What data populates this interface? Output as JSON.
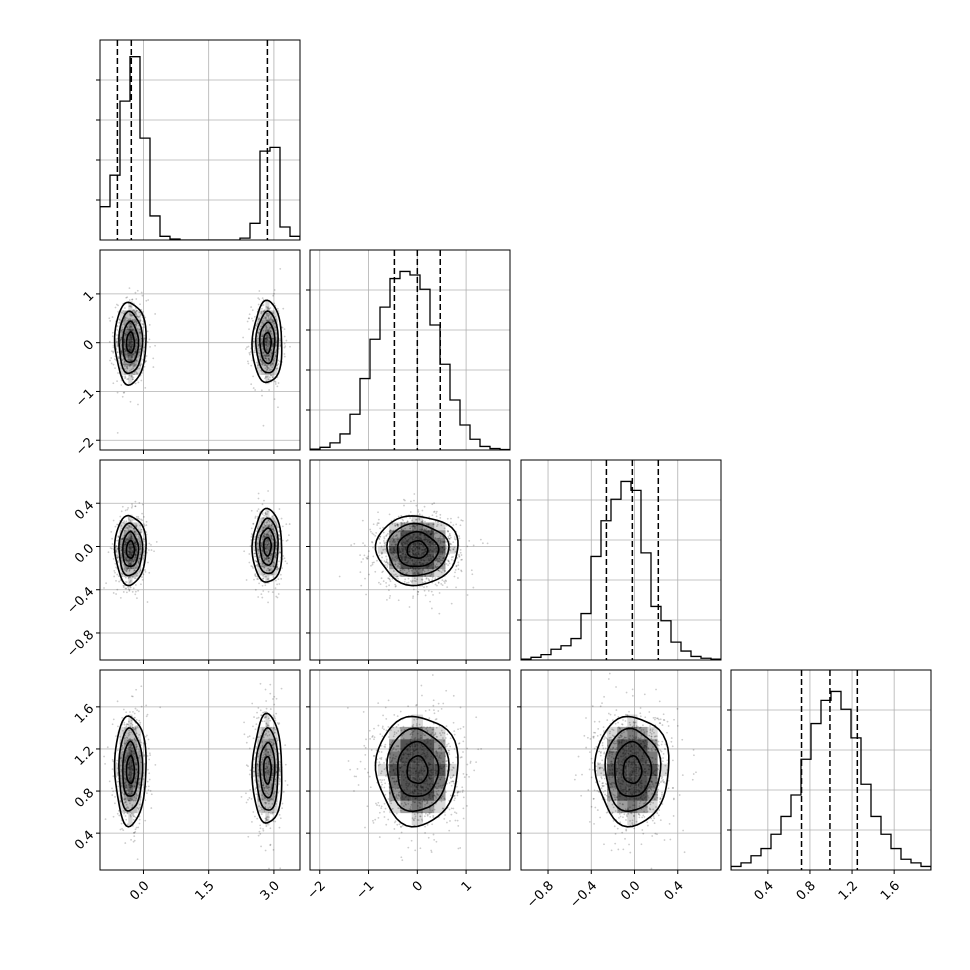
{
  "chart_data": {
    "type": "corner",
    "n_params": 4,
    "grid": true,
    "axes": [
      {
        "id": "p0",
        "range": [
          -1.0,
          3.6
        ],
        "ticks": [
          0.0,
          1.5,
          3.0
        ],
        "tick_labels": [
          "0.0",
          "1.5",
          "3.0"
        ]
      },
      {
        "id": "p1",
        "range": [
          -2.2,
          1.9
        ],
        "ticks": [
          -2,
          -1,
          0,
          1
        ],
        "tick_labels": [
          "−2",
          "−1",
          "0",
          "1"
        ]
      },
      {
        "id": "p2",
        "range": [
          -1.05,
          0.8
        ],
        "ticks": [
          -0.8,
          -0.4,
          0.0,
          0.4
        ],
        "tick_labels": [
          "−0.8",
          "−0.4",
          "0.0",
          "0.4"
        ]
      },
      {
        "id": "p3",
        "range": [
          0.05,
          1.95
        ],
        "ticks": [
          0.4,
          0.8,
          1.2,
          1.6
        ],
        "tick_labels": [
          "0.4",
          "0.8",
          "1.2",
          "1.6"
        ]
      }
    ],
    "histograms": [
      {
        "param": 0,
        "quantiles": [
          -0.6,
          -0.28,
          2.85
        ],
        "bins": [
          -1.0,
          -0.77,
          -0.54,
          -0.31,
          -0.08,
          0.15,
          0.38,
          0.61,
          0.84,
          1.07,
          1.3,
          1.53,
          1.76,
          1.99,
          2.22,
          2.45,
          2.68,
          2.91,
          3.14,
          3.37,
          3.6
        ],
        "counts": [
          0.18,
          0.35,
          0.75,
          0.99,
          0.55,
          0.13,
          0.02,
          0.005,
          0,
          0,
          0,
          0,
          0,
          0,
          0.01,
          0.09,
          0.48,
          0.5,
          0.07,
          0.02
        ],
        "ylim": [
          0,
          1.08
        ]
      },
      {
        "param": 1,
        "quantiles": [
          -0.47,
          0.0,
          0.47
        ],
        "bins": [
          -2.2,
          -1.995,
          -1.79,
          -1.585,
          -1.38,
          -1.175,
          -0.97,
          -0.765,
          -0.56,
          -0.355,
          -0.15,
          0.055,
          0.26,
          0.465,
          0.67,
          0.875,
          1.08,
          1.285,
          1.49,
          1.695,
          1.9
        ],
        "counts": [
          0.005,
          0.015,
          0.04,
          0.09,
          0.2,
          0.4,
          0.62,
          0.8,
          0.96,
          1.0,
          0.98,
          0.9,
          0.7,
          0.48,
          0.28,
          0.14,
          0.06,
          0.02,
          0.008,
          0.003
        ],
        "ylim": [
          0,
          1.12
        ]
      },
      {
        "param": 2,
        "quantiles": [
          -0.26,
          -0.02,
          0.22
        ],
        "bins": [
          -1.05,
          -0.9575,
          -0.865,
          -0.7725,
          -0.68,
          -0.5875,
          -0.495,
          -0.4025,
          -0.31,
          -0.2175,
          -0.125,
          -0.0325,
          0.06,
          0.1525,
          0.245,
          0.3375,
          0.43,
          0.5225,
          0.615,
          0.7075,
          0.8
        ],
        "counts": [
          0.005,
          0.015,
          0.03,
          0.06,
          0.08,
          0.12,
          0.26,
          0.58,
          0.78,
          0.9,
          1.0,
          0.95,
          0.6,
          0.3,
          0.22,
          0.1,
          0.05,
          0.02,
          0.01,
          0.005
        ],
        "ylim": [
          0,
          1.12
        ]
      },
      {
        "param": 3,
        "quantiles": [
          0.72,
          0.99,
          1.25
        ],
        "bins": [
          0.05,
          0.145,
          0.24,
          0.335,
          0.43,
          0.525,
          0.62,
          0.715,
          0.81,
          0.905,
          1.0,
          1.095,
          1.19,
          1.285,
          1.38,
          1.475,
          1.57,
          1.665,
          1.76,
          1.855,
          1.95
        ],
        "counts": [
          0.02,
          0.04,
          0.08,
          0.12,
          0.2,
          0.3,
          0.42,
          0.62,
          0.82,
          0.95,
          1.0,
          0.9,
          0.74,
          0.48,
          0.3,
          0.2,
          0.12,
          0.06,
          0.04,
          0.02
        ],
        "ylim": [
          0,
          1.12
        ]
      }
    ],
    "pairs": [
      {
        "x": 0,
        "y": 1,
        "modes": [
          {
            "cx": -0.3,
            "cy": 0.0,
            "sx": 0.18,
            "sy": 0.42,
            "w": 0.55
          },
          {
            "cx": 2.85,
            "cy": 0.0,
            "sx": 0.17,
            "sy": 0.42,
            "w": 0.45
          }
        ]
      },
      {
        "x": 0,
        "y": 2,
        "modes": [
          {
            "cx": -0.3,
            "cy": -0.03,
            "sx": 0.18,
            "sy": 0.16,
            "w": 0.55
          },
          {
            "cx": 2.85,
            "cy": 0.0,
            "sx": 0.17,
            "sy": 0.17,
            "w": 0.45
          }
        ]
      },
      {
        "x": 0,
        "y": 3,
        "modes": [
          {
            "cx": -0.3,
            "cy": 1.0,
            "sx": 0.18,
            "sy": 0.26,
            "w": 0.55
          },
          {
            "cx": 2.85,
            "cy": 1.0,
            "sx": 0.17,
            "sy": 0.26,
            "w": 0.45
          }
        ]
      },
      {
        "x": 1,
        "y": 2,
        "modes": [
          {
            "cx": 0.0,
            "cy": -0.03,
            "sx": 0.42,
            "sy": 0.16,
            "w": 1.0
          }
        ]
      },
      {
        "x": 1,
        "y": 3,
        "modes": [
          {
            "cx": 0.0,
            "cy": 1.0,
            "sx": 0.42,
            "sy": 0.26,
            "w": 1.0
          }
        ]
      },
      {
        "x": 2,
        "y": 3,
        "modes": [
          {
            "cx": -0.02,
            "cy": 1.0,
            "sx": 0.17,
            "sy": 0.26,
            "w": 1.0
          }
        ]
      }
    ],
    "contour_levels_sigma": [
      0.5,
      1.0,
      1.5,
      2.0
    ]
  }
}
